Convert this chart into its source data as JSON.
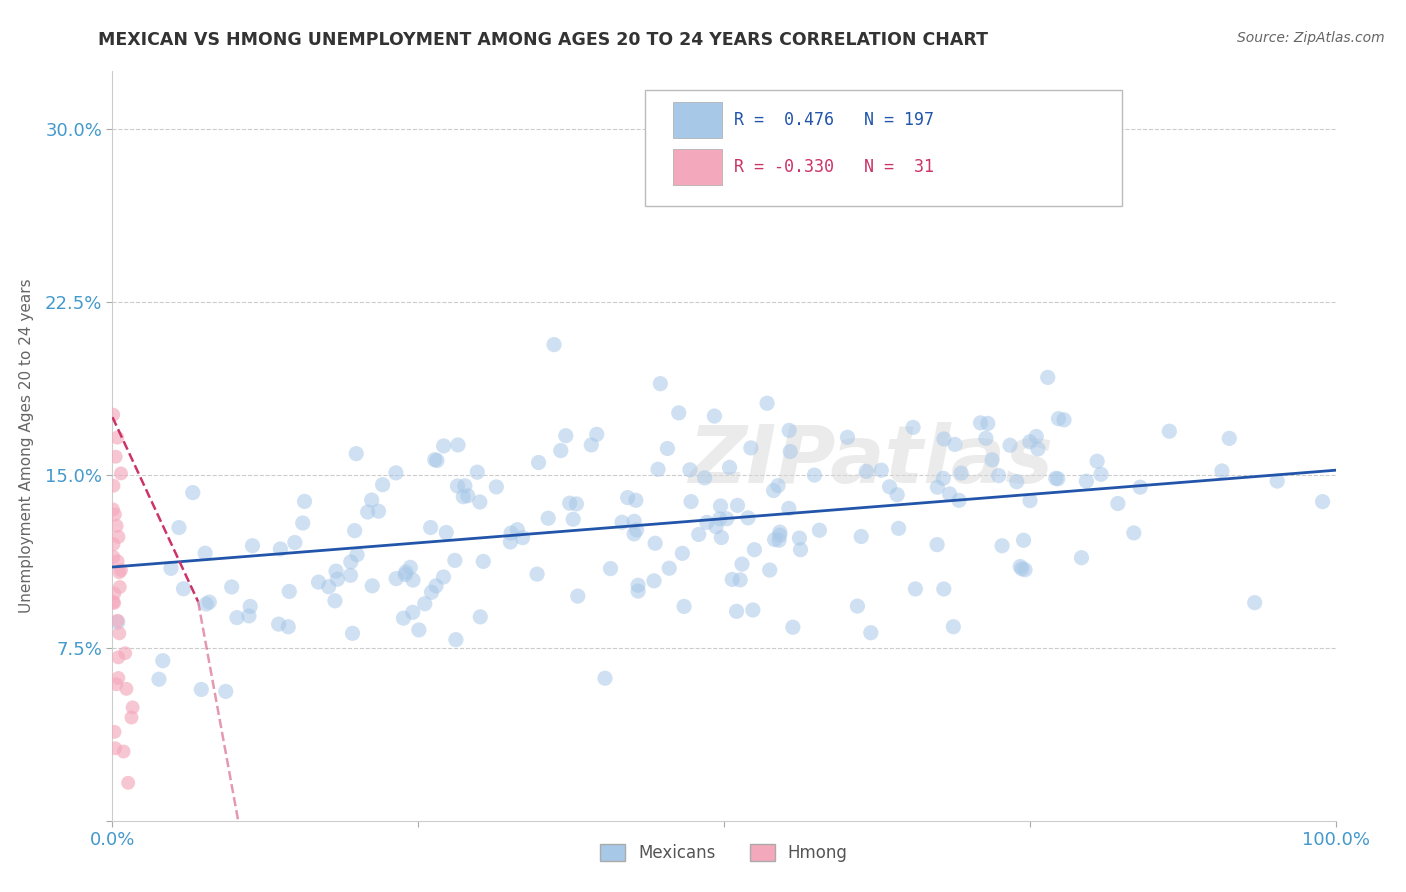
{
  "title": "MEXICAN VS HMONG UNEMPLOYMENT AMONG AGES 20 TO 24 YEARS CORRELATION CHART",
  "source": "Source: ZipAtlas.com",
  "ylabel": "Unemployment Among Ages 20 to 24 years",
  "xlim": [
    0.0,
    1.0
  ],
  "ylim": [
    0.0,
    0.325
  ],
  "xticks": [
    0.0,
    0.25,
    0.5,
    0.75,
    1.0
  ],
  "xticklabels": [
    "0.0%",
    "",
    "",
    "",
    "100.0%"
  ],
  "yticks": [
    0.0,
    0.075,
    0.15,
    0.225,
    0.3
  ],
  "yticklabels": [
    "",
    "7.5%",
    "15.0%",
    "22.5%",
    "30.0%"
  ],
  "mexican_color": "#a8c8e8",
  "hmong_color": "#f4a8bc",
  "trend_mexican_color": "#2255aa",
  "trend_hmong_color": "#cc3366",
  "background_color": "#ffffff",
  "watermark": "ZIPatlas",
  "watermark_color": "#d8d8d8",
  "R_mexican": 0.476,
  "N_mexican": 197,
  "R_hmong": -0.33,
  "N_hmong": 31,
  "mexican_trend_x": [
    0.0,
    1.0
  ],
  "mexican_trend_y": [
    0.11,
    0.152
  ],
  "hmong_trend_x": [
    0.0,
    0.07
  ],
  "hmong_trend_y": [
    0.175,
    0.095
  ],
  "grid_color": "#cccccc",
  "title_color": "#333333",
  "tick_color": "#4499cc",
  "dot_size_mex": 120,
  "dot_size_hmong": 100,
  "legend_r1": "R =  0.476",
  "legend_n1": "N = 197",
  "legend_r2": "R = -0.330",
  "legend_n2": "N =  31"
}
